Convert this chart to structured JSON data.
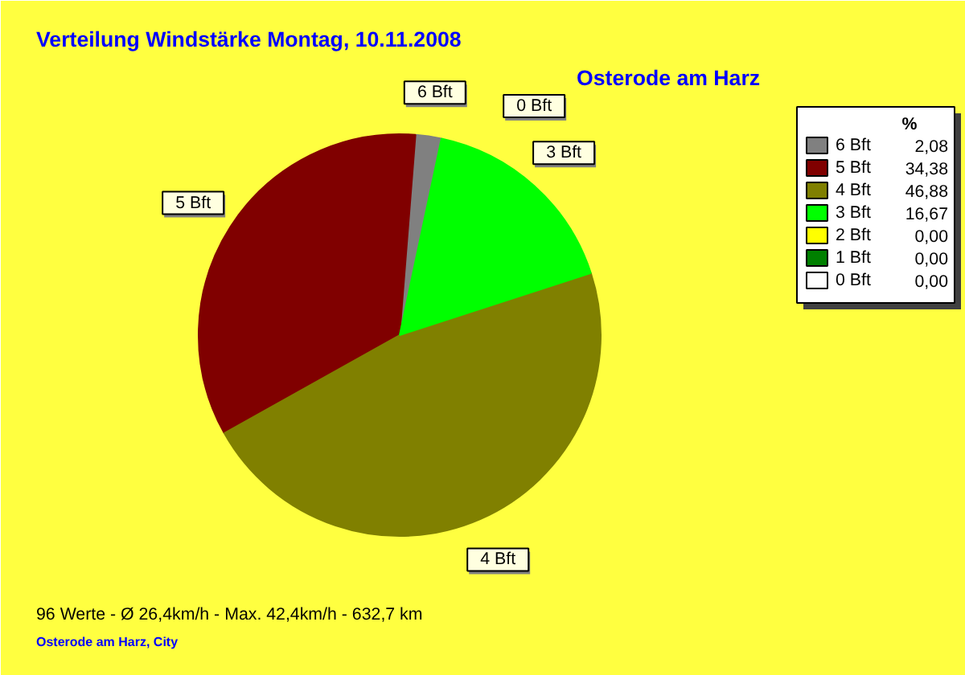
{
  "chart_data": {
    "type": "pie",
    "title": "Verteilung Windstärke  Montag, 10.11.2008",
    "subtitle": "Osterode am Harz",
    "legend_title": "%",
    "categories": [
      "6 Bft",
      "5 Bft",
      "4 Bft",
      "3 Bft",
      "2 Bft",
      "1 Bft",
      "0 Bft"
    ],
    "values": [
      2.08,
      34.38,
      46.88,
      16.67,
      0.0,
      0.0,
      0.0
    ],
    "value_labels": [
      "2,08",
      "34,38",
      "46,88",
      "16,67",
      "0,00",
      "0,00",
      "0,00"
    ],
    "colors": [
      "#808080",
      "#800000",
      "#808000",
      "#00ff00",
      "#ffff00",
      "#008000",
      "#ffffff"
    ],
    "legend": "top right",
    "annotations": [
      "96 Werte   -   Ø 26,4km/h  -  Max. 42,4km/h   -   632,7 km",
      "Osterode am Harz, City"
    ]
  }
}
